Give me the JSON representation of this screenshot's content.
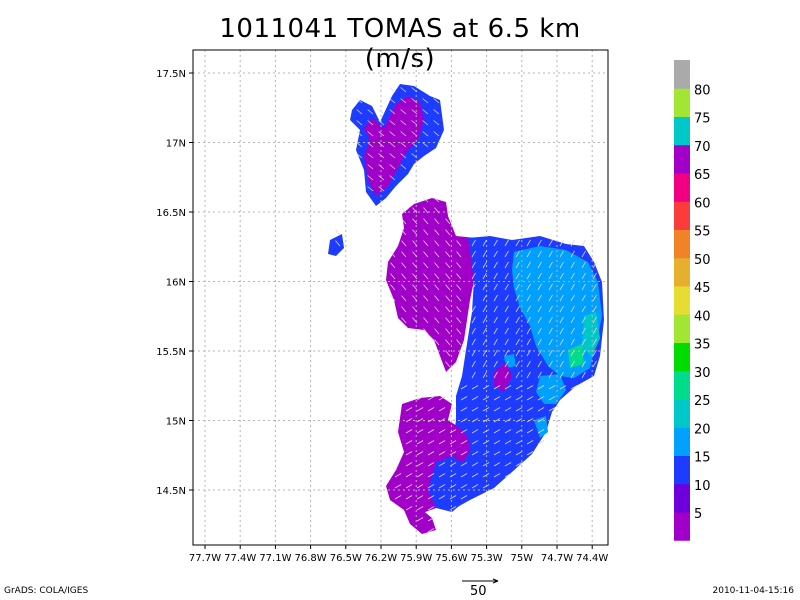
{
  "title": "1011041 TOMAS at 6.5 km (m/s)",
  "map": {
    "lon_labels": [
      "77.7W",
      "77.4W",
      "77.1W",
      "76.8W",
      "76.5W",
      "76.2W",
      "75.9W",
      "75.6W",
      "75.3W",
      "75W",
      "74.7W",
      "74.4W"
    ],
    "lat_labels": [
      "17.5N",
      "17N",
      "16.5N",
      "16N",
      "15.5N",
      "15N",
      "14.5N"
    ],
    "lon_range": [
      -77.85,
      -74.3
    ],
    "lat_range": [
      14.1,
      17.6
    ],
    "grid": true
  },
  "colorbar": {
    "labels": [
      "5",
      "10",
      "15",
      "20",
      "25",
      "30",
      "35",
      "40",
      "45",
      "50",
      "55",
      "60",
      "65",
      "70",
      "75",
      "80"
    ],
    "colors": [
      "#a000c8",
      "#6e00dc",
      "#1e3cff",
      "#00a0ff",
      "#00c8c8",
      "#00dc8c",
      "#00dc00",
      "#a0e632",
      "#e6dc32",
      "#e6af2d",
      "#f08228",
      "#fa3c3c",
      "#f00082",
      "#a000c8",
      "#00c8c8",
      "#a0e632",
      "#aaaaaa"
    ]
  },
  "reference_vector_label": "50",
  "footer_left": "GrADS: COLA/IGES",
  "footer_right": "2010-11-04-15:16"
}
